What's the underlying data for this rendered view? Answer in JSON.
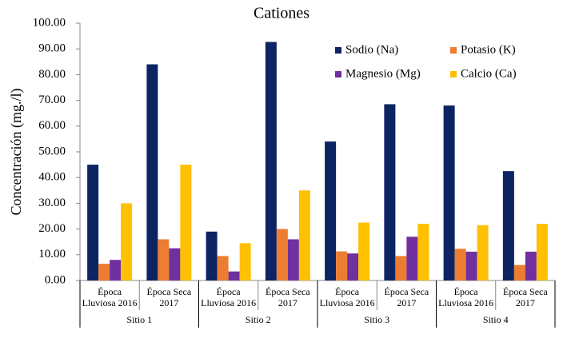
{
  "chart_data": {
    "type": "bar",
    "title": "Cationes",
    "y_label": "Concentración (mg./l)",
    "categories": [
      "Época Lluviosa 2016",
      "Época Seca 2017",
      "Época Lluviosa 2016",
      "Época Seca 2017",
      "Época Lluviosa 2016",
      "Época Seca 2017",
      "Época Lluviosa 2016",
      "Época Seca 2017"
    ],
    "category_groups": [
      "Sitio 1",
      "Sitio 2",
      "Sitio 3",
      "Sitio 4"
    ],
    "series": [
      {
        "name": "Sodio (Na)",
        "color": "#0d2463",
        "values": [
          45,
          84,
          19,
          92.7,
          54,
          68.5,
          68,
          42.5
        ]
      },
      {
        "name": "Potasio (K)",
        "color": "#ed7d31",
        "values": [
          6.5,
          16,
          9.5,
          20,
          11.3,
          9.5,
          12.3,
          6
        ]
      },
      {
        "name": "Magnesio (Mg)",
        "color": "#7030a0",
        "values": [
          8,
          12.5,
          3.5,
          16,
          10.5,
          17,
          11.2,
          11.2
        ]
      },
      {
        "name": "Calcio (Ca)",
        "color": "#ffc000",
        "values": [
          30,
          45,
          14.5,
          35,
          22.5,
          22,
          21.5,
          22
        ]
      }
    ],
    "ylim": [
      0,
      100
    ],
    "yticks": [
      {
        "value": 0,
        "label": "0.00"
      },
      {
        "value": 10,
        "label": "10.00"
      },
      {
        "value": 20,
        "label": "20.00"
      },
      {
        "value": 30,
        "label": "30.00"
      },
      {
        "value": 40,
        "label": "40.00"
      },
      {
        "value": 50,
        "label": "50.00"
      },
      {
        "value": 60,
        "label": "60.00"
      },
      {
        "value": 70,
        "label": "70.00"
      },
      {
        "value": 80,
        "label": "80.00"
      },
      {
        "value": 90,
        "label": "90.00"
      },
      {
        "value": 100,
        "label": "100.00"
      }
    ],
    "grid": false,
    "legend": "upper right"
  }
}
